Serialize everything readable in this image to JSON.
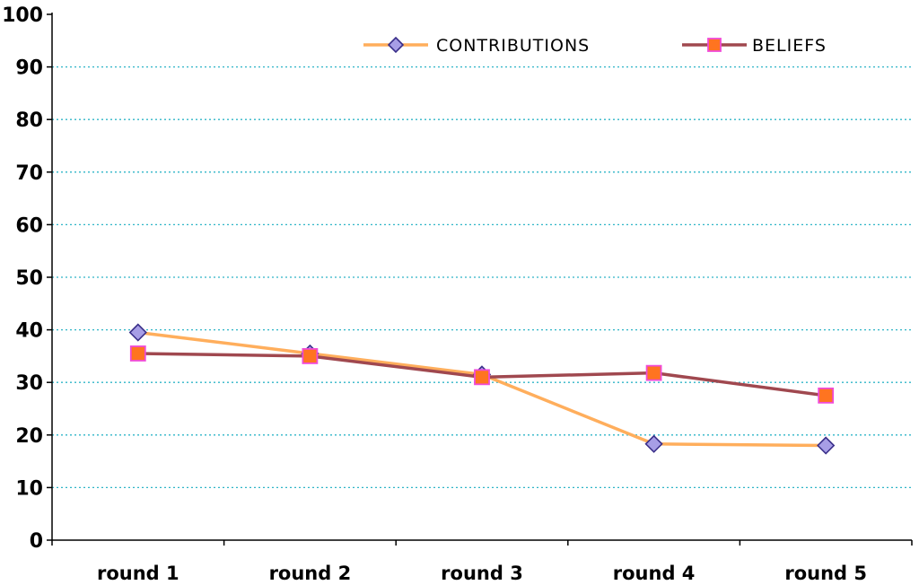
{
  "chart_data": {
    "type": "line",
    "categories": [
      "round 1",
      "round 2",
      "round 3",
      "round 4",
      "round 5"
    ],
    "series": [
      {
        "name": "CONTRIBUTIONS",
        "values": [
          39.5,
          35.5,
          31.5,
          18.3,
          18.0
        ],
        "line_color": "#ffae5c",
        "marker": "diamond",
        "marker_fill": "#a79ee6",
        "marker_stroke": "#3a2f8a"
      },
      {
        "name": "BELIEFS",
        "values": [
          35.5,
          35.0,
          31.0,
          31.8,
          27.5
        ],
        "line_color": "#a0484f",
        "marker": "square",
        "marker_fill": "#ff7420",
        "marker_stroke": "#f04bd8"
      }
    ],
    "ylim": [
      0,
      100
    ],
    "yticks": [
      "0",
      "10",
      "20",
      "30",
      "40",
      "50",
      "60",
      "70",
      "80",
      "90",
      "100"
    ],
    "grid": true,
    "grid_color": "#2fb5c7",
    "legend_position": "top-right"
  }
}
